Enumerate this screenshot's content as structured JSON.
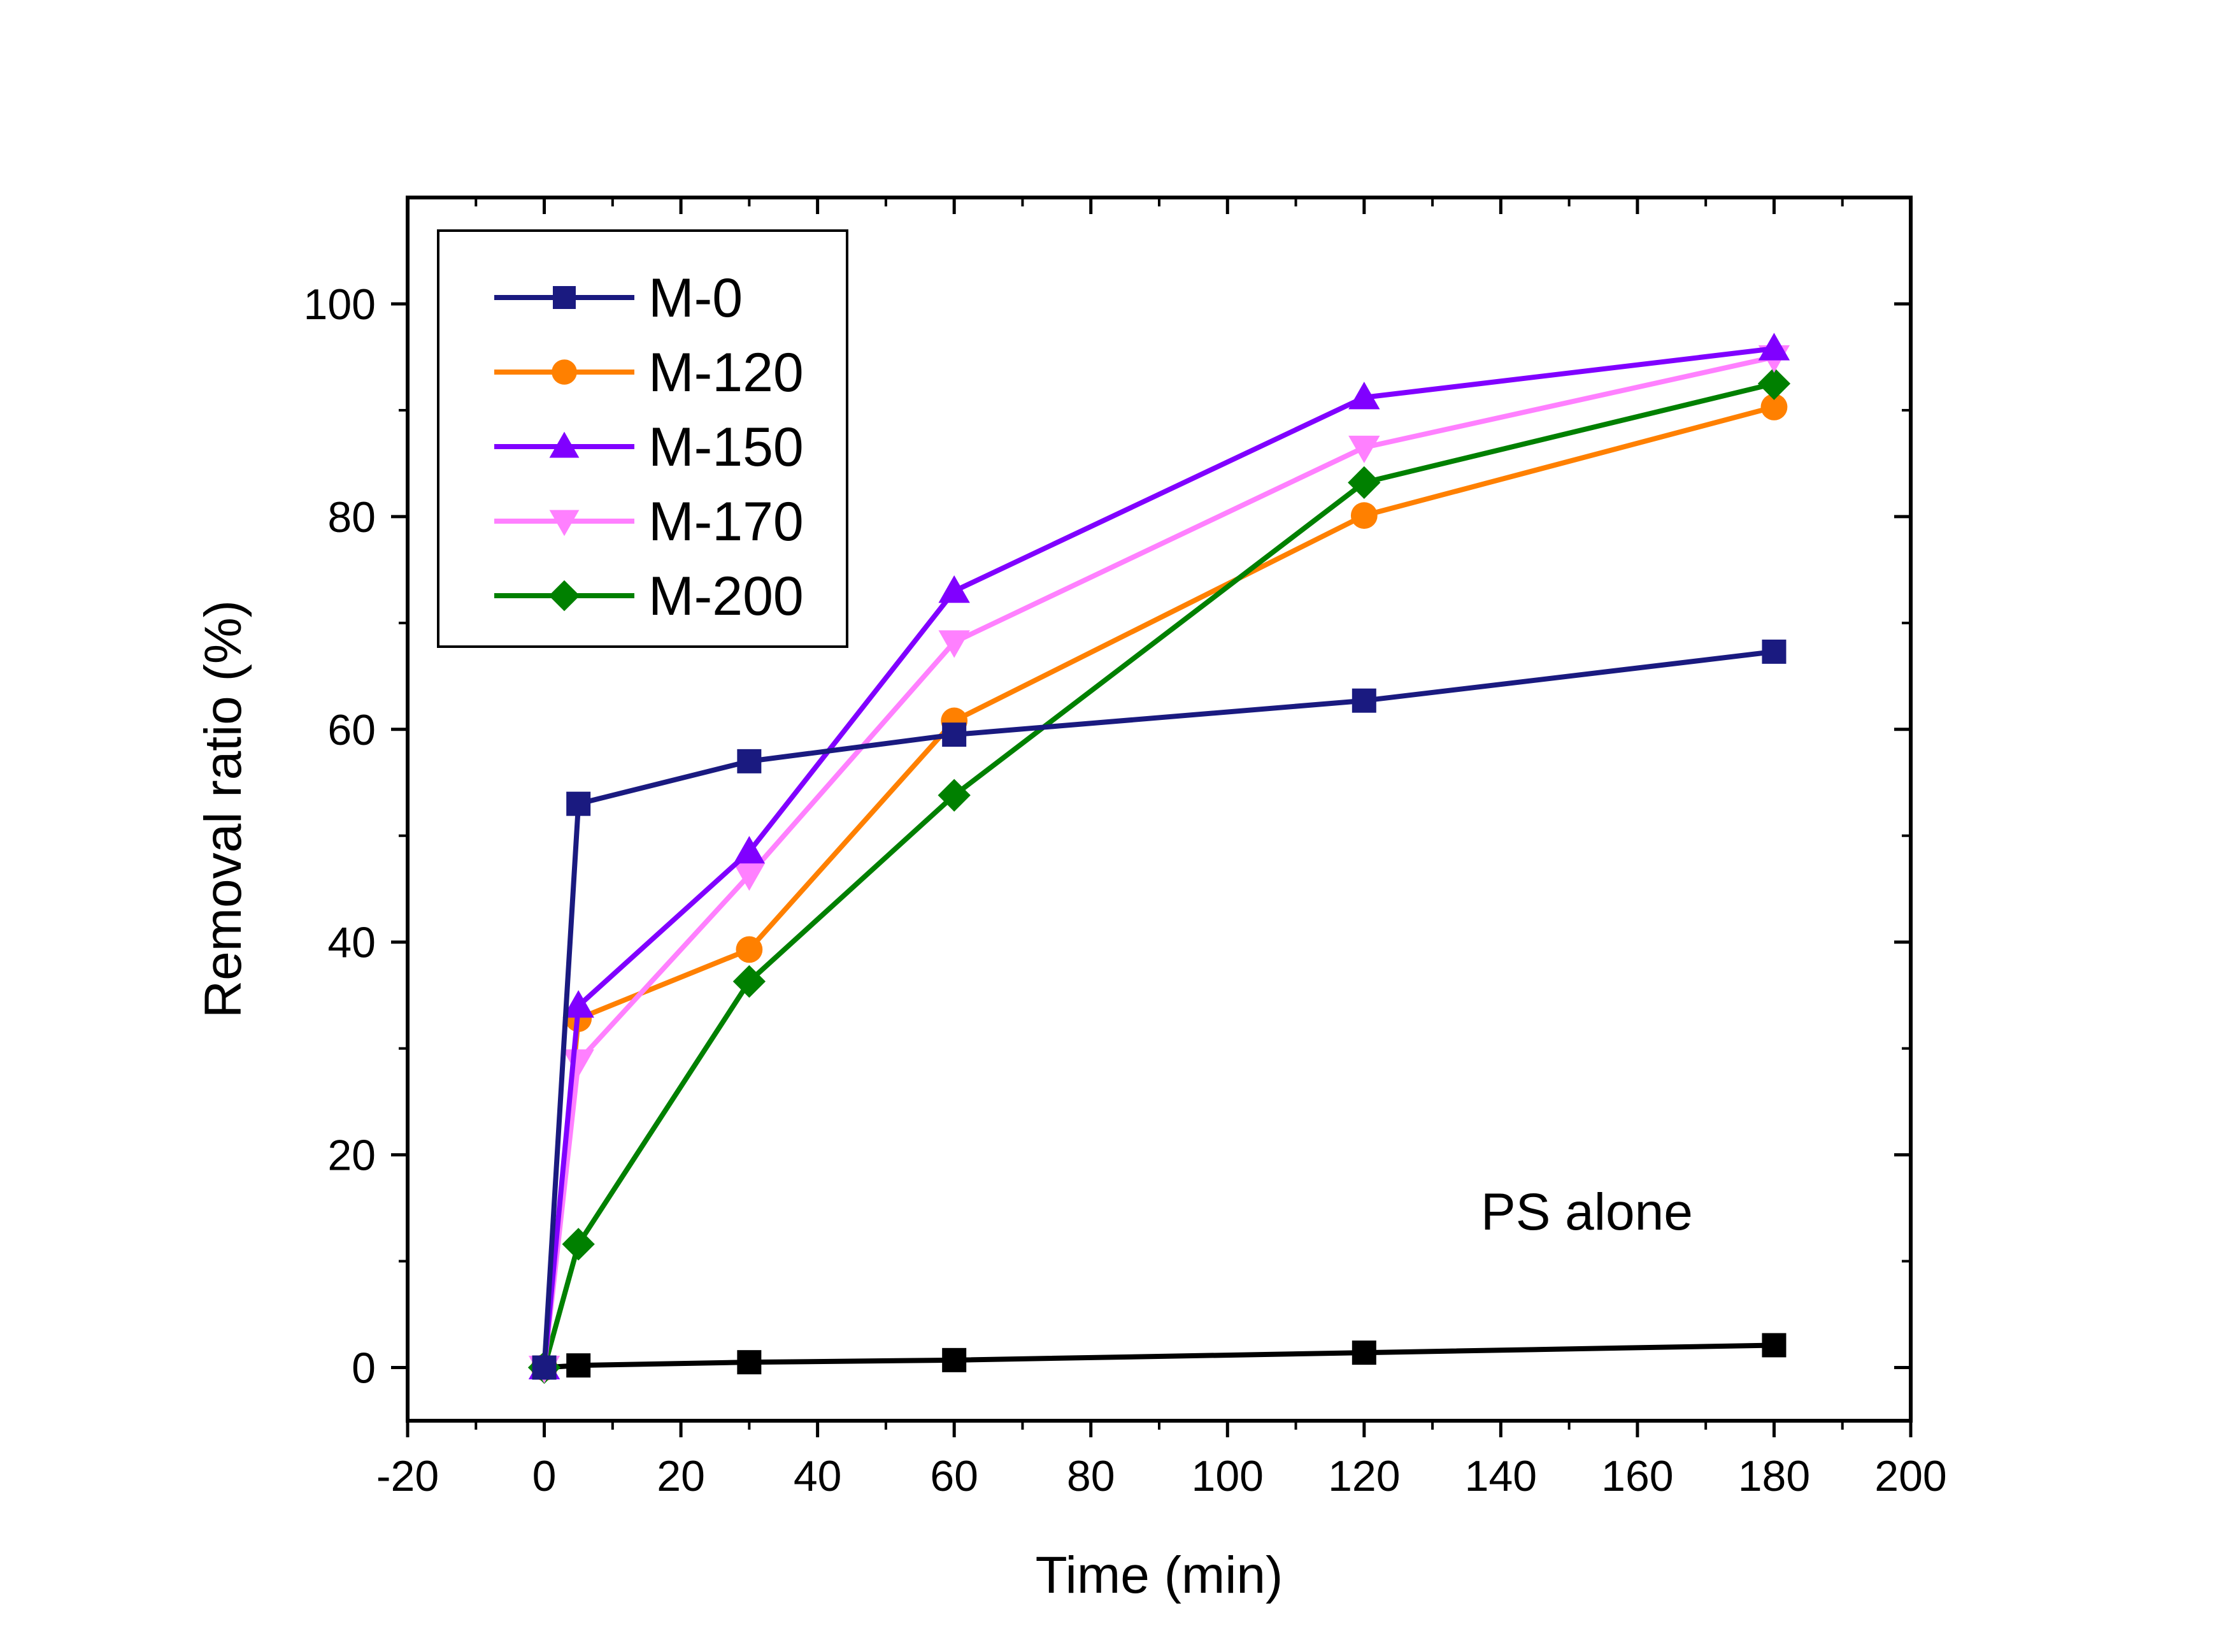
{
  "chart_data": {
    "type": "line",
    "xlabel": "Time (min)",
    "ylabel": "Removal ratio (%)",
    "xlim": [
      -20,
      200
    ],
    "ylim": [
      -5,
      110
    ],
    "xticks": [
      -20,
      0,
      20,
      40,
      60,
      80,
      100,
      120,
      140,
      160,
      180,
      200
    ],
    "yticks": [
      0,
      20,
      40,
      60,
      80,
      100
    ],
    "xtick_labels": [
      "-20",
      "0",
      "20",
      "40",
      "60",
      "80",
      "100",
      "120",
      "140",
      "160",
      "180",
      "200"
    ],
    "ytick_labels": [
      "0",
      "20",
      "40",
      "60",
      "80",
      "100"
    ],
    "grid": false,
    "legend_position": "top-left",
    "annotation": "PS alone",
    "series": [
      {
        "name": "M-0",
        "color": "#1a1a80",
        "marker": "square",
        "x": [
          0,
          5,
          30,
          60,
          120,
          180
        ],
        "y": [
          0,
          53,
          57,
          59.5,
          62.7,
          67.3
        ]
      },
      {
        "name": "M-120",
        "color": "#ff8000",
        "marker": "circle",
        "x": [
          0,
          5,
          30,
          60,
          120,
          180
        ],
        "y": [
          0,
          32.8,
          39.3,
          60.8,
          80.1,
          90.3
        ]
      },
      {
        "name": "M-150",
        "color": "#8000ff",
        "marker": "triangle-up",
        "x": [
          0,
          5,
          30,
          60,
          120,
          180
        ],
        "y": [
          0,
          34,
          48.5,
          73,
          91.2,
          95.8
        ]
      },
      {
        "name": "M-170",
        "color": "#ff80ff",
        "marker": "triangle-down",
        "x": [
          0,
          5,
          30,
          60,
          120,
          180
        ],
        "y": [
          0,
          28.8,
          46.3,
          68.2,
          86.5,
          95
        ]
      },
      {
        "name": "M-200",
        "color": "#008000",
        "marker": "diamond",
        "x": [
          0,
          5,
          30,
          60,
          120,
          180
        ],
        "y": [
          0,
          11.6,
          36.3,
          53.8,
          83.2,
          92.5
        ]
      },
      {
        "name": "",
        "color": "#000000",
        "marker": "square",
        "x": [
          0,
          5,
          30,
          60,
          120,
          180
        ],
        "y": [
          0,
          0.2,
          0.5,
          0.7,
          1.4,
          2.1
        ]
      }
    ]
  }
}
